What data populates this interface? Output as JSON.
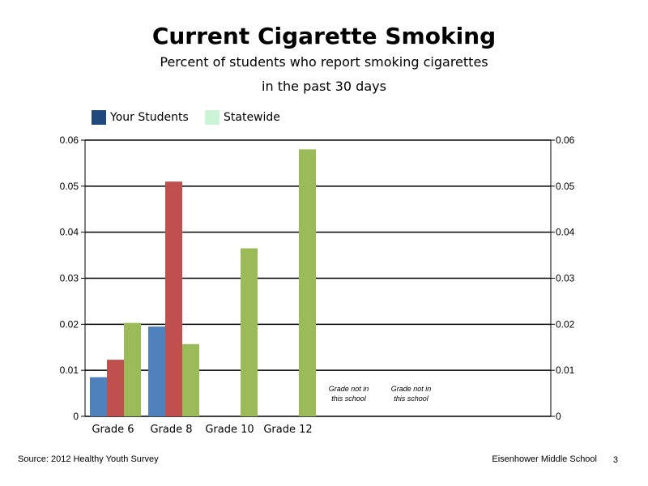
{
  "chart_data": {
    "type": "bar",
    "title": "Current Cigarette Smoking",
    "subtitle_lines": [
      "Percent of students who report smoking cigarettes",
      "in the past 30 days"
    ],
    "categories": [
      "Grade 6",
      "Grade 8",
      "Grade 10",
      "Grade 12"
    ],
    "series": [
      {
        "name": "Your Students",
        "color": "#4f81bd",
        "values": [
          0.0085,
          0.0195,
          null,
          null
        ]
      },
      {
        "name": "",
        "color": "#c0504d",
        "values": [
          0.0123,
          0.051,
          null,
          null
        ]
      },
      {
        "name": "Statewide",
        "color": "#9bbb59",
        "values": [
          0.0203,
          0.0157,
          0.0365,
          0.058
        ]
      }
    ],
    "legend": [
      {
        "label": "Your Students",
        "color": "#1f497d"
      },
      {
        "label": "Statewide",
        "color": "#ccf5d8"
      }
    ],
    "ylim": [
      0,
      0.06
    ],
    "yticks": [
      "0",
      "0.01",
      "0.02",
      "0.03",
      "0.04",
      "0.05",
      "0.06"
    ],
    "annotations": [
      {
        "line1": "Grade not in",
        "line2": "this school",
        "group": 4
      },
      {
        "line1": "Grade not in",
        "line2": "this school",
        "group": 5
      }
    ],
    "grid": true,
    "legend_position": "top-left"
  },
  "footer": {
    "source": "Source: 2012 Healthy Youth Survey",
    "school": "Eisenhower Middle School",
    "page": "3"
  }
}
